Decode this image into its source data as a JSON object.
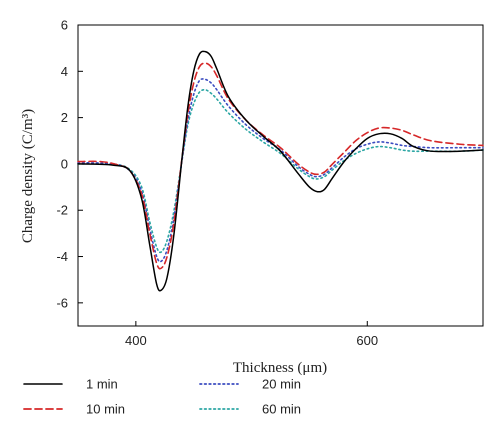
{
  "chart_data": {
    "type": "line",
    "title": "",
    "xlabel": "Thickness (μm)",
    "ylabel": "Charge density (C/m³)",
    "xlim": [
      350,
      700
    ],
    "ylim": [
      -7,
      6
    ],
    "x_ticks": [
      400,
      600
    ],
    "y_ticks": [
      -6,
      -4,
      -2,
      0,
      2,
      4,
      6
    ],
    "grid": false,
    "legend_position": "bottom",
    "series": [
      {
        "name": "1 min",
        "color": "#000000",
        "dash": "solid",
        "points": [
          [
            350,
            0
          ],
          [
            380,
            -0.05
          ],
          [
            395,
            -0.3
          ],
          [
            405,
            -1.5
          ],
          [
            412,
            -3.5
          ],
          [
            418,
            -5.2
          ],
          [
            422,
            -5.45
          ],
          [
            427,
            -4.9
          ],
          [
            433,
            -3.0
          ],
          [
            440,
            0.3
          ],
          [
            445,
            2.5
          ],
          [
            450,
            4.0
          ],
          [
            455,
            4.75
          ],
          [
            460,
            4.85
          ],
          [
            465,
            4.65
          ],
          [
            470,
            4.1
          ],
          [
            480,
            2.9
          ],
          [
            495,
            1.9
          ],
          [
            510,
            1.2
          ],
          [
            525,
            0.55
          ],
          [
            540,
            -0.4
          ],
          [
            550,
            -1.0
          ],
          [
            557,
            -1.2
          ],
          [
            563,
            -1.1
          ],
          [
            570,
            -0.6
          ],
          [
            580,
            0.1
          ],
          [
            590,
            0.65
          ],
          [
            600,
            1.1
          ],
          [
            610,
            1.3
          ],
          [
            620,
            1.3
          ],
          [
            630,
            1.1
          ],
          [
            640,
            0.75
          ],
          [
            655,
            0.55
          ],
          [
            680,
            0.55
          ],
          [
            700,
            0.6
          ]
        ]
      },
      {
        "name": "10 min",
        "color": "#d62728",
        "dash": "dashed",
        "points": [
          [
            350,
            0.1
          ],
          [
            370,
            0.1
          ],
          [
            385,
            -0.05
          ],
          [
            395,
            -0.3
          ],
          [
            405,
            -1.3
          ],
          [
            412,
            -3.0
          ],
          [
            418,
            -4.3
          ],
          [
            422,
            -4.5
          ],
          [
            427,
            -4.0
          ],
          [
            433,
            -2.5
          ],
          [
            440,
            0.3
          ],
          [
            445,
            2.2
          ],
          [
            450,
            3.5
          ],
          [
            455,
            4.2
          ],
          [
            460,
            4.35
          ],
          [
            465,
            4.2
          ],
          [
            470,
            3.8
          ],
          [
            480,
            2.8
          ],
          [
            495,
            1.9
          ],
          [
            510,
            1.25
          ],
          [
            525,
            0.7
          ],
          [
            540,
            0.0
          ],
          [
            550,
            -0.35
          ],
          [
            556,
            -0.45
          ],
          [
            563,
            -0.35
          ],
          [
            570,
            0.0
          ],
          [
            580,
            0.5
          ],
          [
            590,
            1.0
          ],
          [
            600,
            1.35
          ],
          [
            610,
            1.55
          ],
          [
            620,
            1.55
          ],
          [
            630,
            1.45
          ],
          [
            640,
            1.25
          ],
          [
            655,
            1.0
          ],
          [
            680,
            0.85
          ],
          [
            700,
            0.8
          ]
        ]
      },
      {
        "name": "20 min",
        "color": "#3b4cc0",
        "dash": "dotted",
        "points": [
          [
            350,
            0.05
          ],
          [
            380,
            0.0
          ],
          [
            395,
            -0.3
          ],
          [
            405,
            -1.2
          ],
          [
            412,
            -2.8
          ],
          [
            418,
            -4.0
          ],
          [
            422,
            -4.2
          ],
          [
            427,
            -3.7
          ],
          [
            433,
            -2.3
          ],
          [
            440,
            0.2
          ],
          [
            445,
            1.9
          ],
          [
            450,
            3.0
          ],
          [
            455,
            3.6
          ],
          [
            460,
            3.65
          ],
          [
            465,
            3.5
          ],
          [
            470,
            3.2
          ],
          [
            480,
            2.5
          ],
          [
            495,
            1.7
          ],
          [
            510,
            1.1
          ],
          [
            525,
            0.6
          ],
          [
            540,
            -0.1
          ],
          [
            550,
            -0.45
          ],
          [
            556,
            -0.55
          ],
          [
            563,
            -0.45
          ],
          [
            570,
            -0.15
          ],
          [
            580,
            0.3
          ],
          [
            590,
            0.65
          ],
          [
            600,
            0.85
          ],
          [
            610,
            0.95
          ],
          [
            620,
            0.9
          ],
          [
            630,
            0.8
          ],
          [
            640,
            0.75
          ],
          [
            655,
            0.7
          ],
          [
            680,
            0.7
          ],
          [
            700,
            0.7
          ]
        ]
      },
      {
        "name": "60 min",
        "color": "#2ca6a4",
        "dash": "dotted",
        "points": [
          [
            350,
            0.0
          ],
          [
            380,
            0.0
          ],
          [
            395,
            -0.25
          ],
          [
            405,
            -1.0
          ],
          [
            412,
            -2.5
          ],
          [
            418,
            -3.6
          ],
          [
            422,
            -3.8
          ],
          [
            427,
            -3.3
          ],
          [
            433,
            -2.0
          ],
          [
            440,
            0.2
          ],
          [
            445,
            1.7
          ],
          [
            450,
            2.6
          ],
          [
            455,
            3.1
          ],
          [
            460,
            3.2
          ],
          [
            465,
            3.05
          ],
          [
            470,
            2.8
          ],
          [
            480,
            2.2
          ],
          [
            495,
            1.5
          ],
          [
            510,
            0.95
          ],
          [
            525,
            0.45
          ],
          [
            540,
            -0.2
          ],
          [
            550,
            -0.55
          ],
          [
            556,
            -0.65
          ],
          [
            563,
            -0.55
          ],
          [
            570,
            -0.25
          ],
          [
            580,
            0.15
          ],
          [
            590,
            0.45
          ],
          [
            600,
            0.65
          ],
          [
            610,
            0.75
          ],
          [
            620,
            0.7
          ],
          [
            630,
            0.6
          ],
          [
            640,
            0.55
          ],
          [
            655,
            0.55
          ],
          [
            680,
            0.55
          ],
          [
            700,
            0.6
          ]
        ]
      }
    ]
  }
}
